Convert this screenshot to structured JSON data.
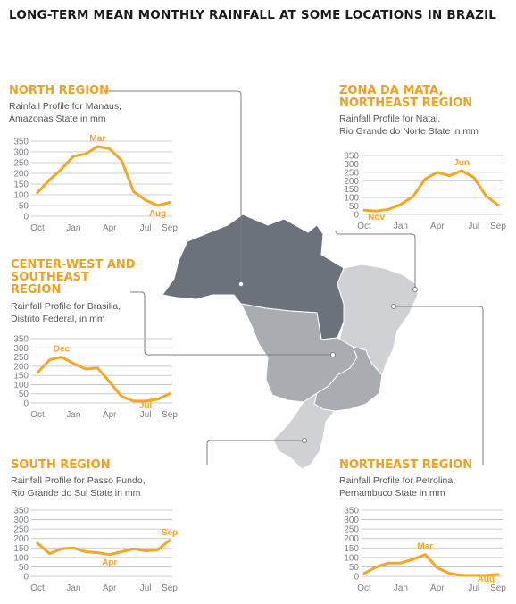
{
  "title": "LONG-TERM MEAN MONTHLY RAINFALL AT SOME LOCATIONS IN BRAZIL",
  "colors": {
    "accent": "#f5a623",
    "grid": "#b8bcc4",
    "map_dark": "#6b727c",
    "map_mid": "#a9acb1",
    "map_light": "#cfd1d4",
    "leader": "#7a7f86"
  },
  "panels": [
    {
      "title": "NORTH REGION",
      "subtitle": "Rainfall Profile for Manaus,\nAmazonas State in mm"
    },
    {
      "title": "ZONA DA MATA,\nNORTHEAST REGION",
      "subtitle": "Rainfall Profile for Natal,\nRio Grande do Norte State in mm"
    },
    {
      "title": "CENTER-WEST AND\nSOUTHEAST\nREGION",
      "subtitle": "Rainfall Profile for Brasilia,\nDistrito Federal, in mm"
    },
    {
      "title": "SOUTH REGION",
      "subtitle": "Rainfall Profile for Passo Fundo,\nRio Grande do Sul State in mm"
    },
    {
      "title": "NORTHEAST REGION",
      "subtitle": "Rainfall Profile for Petrolina,\nPernambuco State in mm"
    }
  ],
  "chart_data": [
    {
      "type": "line",
      "title": "NORTH REGION",
      "x": [
        "Oct",
        "Nov",
        "Dec",
        "Jan",
        "Feb",
        "Mar",
        "Apr",
        "May",
        "Jun",
        "Jul",
        "Aug",
        "Sep"
      ],
      "xticks": [
        "Oct",
        "Jan",
        "Apr",
        "Jul",
        "Sep"
      ],
      "yticks": [
        0,
        50,
        100,
        150,
        200,
        250,
        300,
        350
      ],
      "ylim": [
        0,
        350
      ],
      "series": [
        {
          "values": [
            110,
            170,
            220,
            280,
            290,
            325,
            315,
            260,
            115,
            75,
            50,
            65
          ]
        }
      ],
      "annotations": [
        {
          "label": "Mar",
          "index": 5
        },
        {
          "label": "Aug",
          "index": 10
        }
      ]
    },
    {
      "type": "line",
      "title": "ZONA DA MATA, NORTHEAST REGION",
      "x": [
        "Oct",
        "Nov",
        "Dec",
        "Jan",
        "Feb",
        "Mar",
        "Apr",
        "May",
        "Jun",
        "Jul",
        "Aug",
        "Sep"
      ],
      "xticks": [
        "Oct",
        "Jan",
        "Apr",
        "Jul",
        "Sep"
      ],
      "yticks": [
        0,
        50,
        100,
        150,
        200,
        250,
        300,
        350
      ],
      "ylim": [
        0,
        350
      ],
      "series": [
        {
          "values": [
            25,
            20,
            30,
            60,
            105,
            210,
            250,
            230,
            260,
            220,
            110,
            55
          ]
        }
      ],
      "annotations": [
        {
          "label": "Nov",
          "index": 1
        },
        {
          "label": "Jun",
          "index": 8
        }
      ]
    },
    {
      "type": "line",
      "title": "CENTER-WEST AND SOUTHEAST REGION",
      "x": [
        "Oct",
        "Nov",
        "Dec",
        "Jan",
        "Feb",
        "Mar",
        "Apr",
        "May",
        "Jun",
        "Jul",
        "Aug",
        "Sep"
      ],
      "xticks": [
        "Oct",
        "Jan",
        "Apr",
        "Jul",
        "Sep"
      ],
      "yticks": [
        0,
        50,
        100,
        150,
        200,
        250,
        300,
        350
      ],
      "ylim": [
        0,
        350
      ],
      "series": [
        {
          "values": [
            165,
            235,
            250,
            215,
            185,
            190,
            115,
            35,
            10,
            10,
            20,
            50
          ]
        }
      ],
      "annotations": [
        {
          "label": "Dec",
          "index": 2
        },
        {
          "label": "Jul",
          "index": 9
        }
      ]
    },
    {
      "type": "line",
      "title": "SOUTH REGION",
      "x": [
        "Oct",
        "Nov",
        "Dec",
        "Jan",
        "Feb",
        "Mar",
        "Apr",
        "May",
        "Jun",
        "Jul",
        "Aug",
        "Sep"
      ],
      "xticks": [
        "Oct",
        "Jan",
        "Apr",
        "Jul",
        "Sep"
      ],
      "yticks": [
        0,
        50,
        100,
        150,
        200,
        250,
        300,
        350
      ],
      "ylim": [
        0,
        350
      ],
      "series": [
        {
          "values": [
            175,
            120,
            145,
            150,
            130,
            125,
            115,
            130,
            145,
            135,
            140,
            190
          ]
        }
      ],
      "annotations": [
        {
          "label": "Apr",
          "index": 6
        },
        {
          "label": "Sep",
          "index": 11
        }
      ]
    },
    {
      "type": "line",
      "title": "NORTHEAST REGION",
      "x": [
        "Oct",
        "Nov",
        "Dec",
        "Jan",
        "Feb",
        "Mar",
        "Apr",
        "May",
        "Jun",
        "Jul",
        "Aug",
        "Sep"
      ],
      "xticks": [
        "Oct",
        "Jan",
        "Apr",
        "Jul",
        "Sep"
      ],
      "yticks": [
        0,
        50,
        100,
        150,
        200,
        250,
        300,
        350
      ],
      "ylim": [
        0,
        350
      ],
      "series": [
        {
          "values": [
            15,
            50,
            70,
            70,
            90,
            115,
            45,
            15,
            5,
            5,
            5,
            10
          ]
        }
      ],
      "annotations": [
        {
          "label": "Mar",
          "index": 5
        },
        {
          "label": "Aug",
          "index": 10
        }
      ]
    }
  ]
}
